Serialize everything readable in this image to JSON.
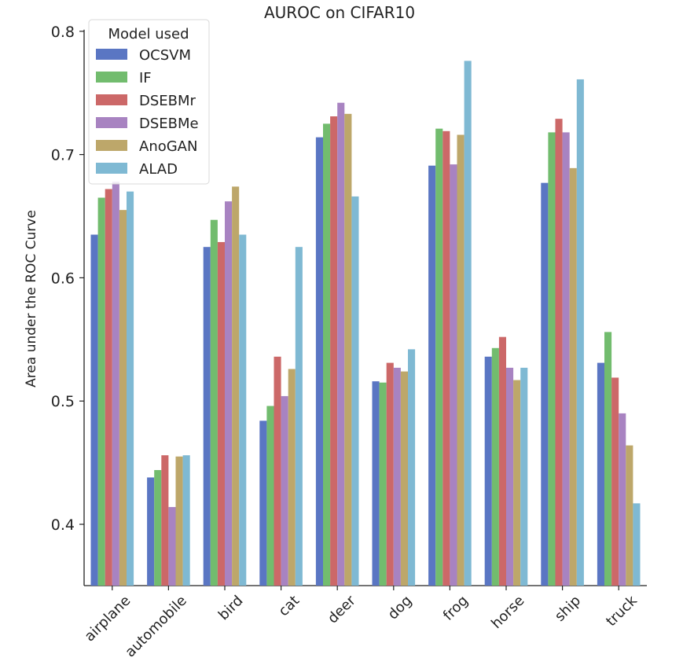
{
  "chart_data": {
    "type": "bar",
    "title": "AUROC on CIFAR10",
    "xlabel": "",
    "ylabel": "Area under the ROC Curve",
    "ylim": [
      0.35,
      0.8
    ],
    "yticks": [
      0.4,
      0.5,
      0.6,
      0.7,
      0.8
    ],
    "ytick_labels": [
      "0.4",
      "0.5",
      "0.6",
      "0.7",
      "0.8"
    ],
    "grid": false,
    "legend": {
      "title": "Model used",
      "placement": "top-left"
    },
    "categories": [
      "airplane",
      "automobile",
      "bird",
      "cat",
      "deer",
      "dog",
      "frog",
      "horse",
      "ship",
      "truck"
    ],
    "series": [
      {
        "name": "OCSVM",
        "color": "#5a76c3",
        "values": [
          0.635,
          0.438,
          0.625,
          0.484,
          0.714,
          0.516,
          0.691,
          0.536,
          0.677,
          0.531
        ]
      },
      {
        "name": "IF",
        "color": "#72bc6e",
        "values": [
          0.665,
          0.444,
          0.647,
          0.496,
          0.725,
          0.515,
          0.721,
          0.543,
          0.718,
          0.556
        ]
      },
      {
        "name": "DSEBMr",
        "color": "#cc6868",
        "values": [
          0.672,
          0.456,
          0.629,
          0.536,
          0.731,
          0.531,
          0.719,
          0.552,
          0.729,
          0.519
        ]
      },
      {
        "name": "DSEBMe",
        "color": "#a883c1",
        "values": [
          0.678,
          0.414,
          0.662,
          0.504,
          0.742,
          0.527,
          0.692,
          0.527,
          0.718,
          0.49
        ]
      },
      {
        "name": "AnoGAN",
        "color": "#bda76a",
        "values": [
          0.655,
          0.455,
          0.674,
          0.526,
          0.733,
          0.524,
          0.716,
          0.517,
          0.689,
          0.464
        ]
      },
      {
        "name": "ALAD",
        "color": "#7fb9d3",
        "values": [
          0.67,
          0.456,
          0.635,
          0.625,
          0.666,
          0.542,
          0.776,
          0.527,
          0.761,
          0.417
        ]
      }
    ]
  }
}
